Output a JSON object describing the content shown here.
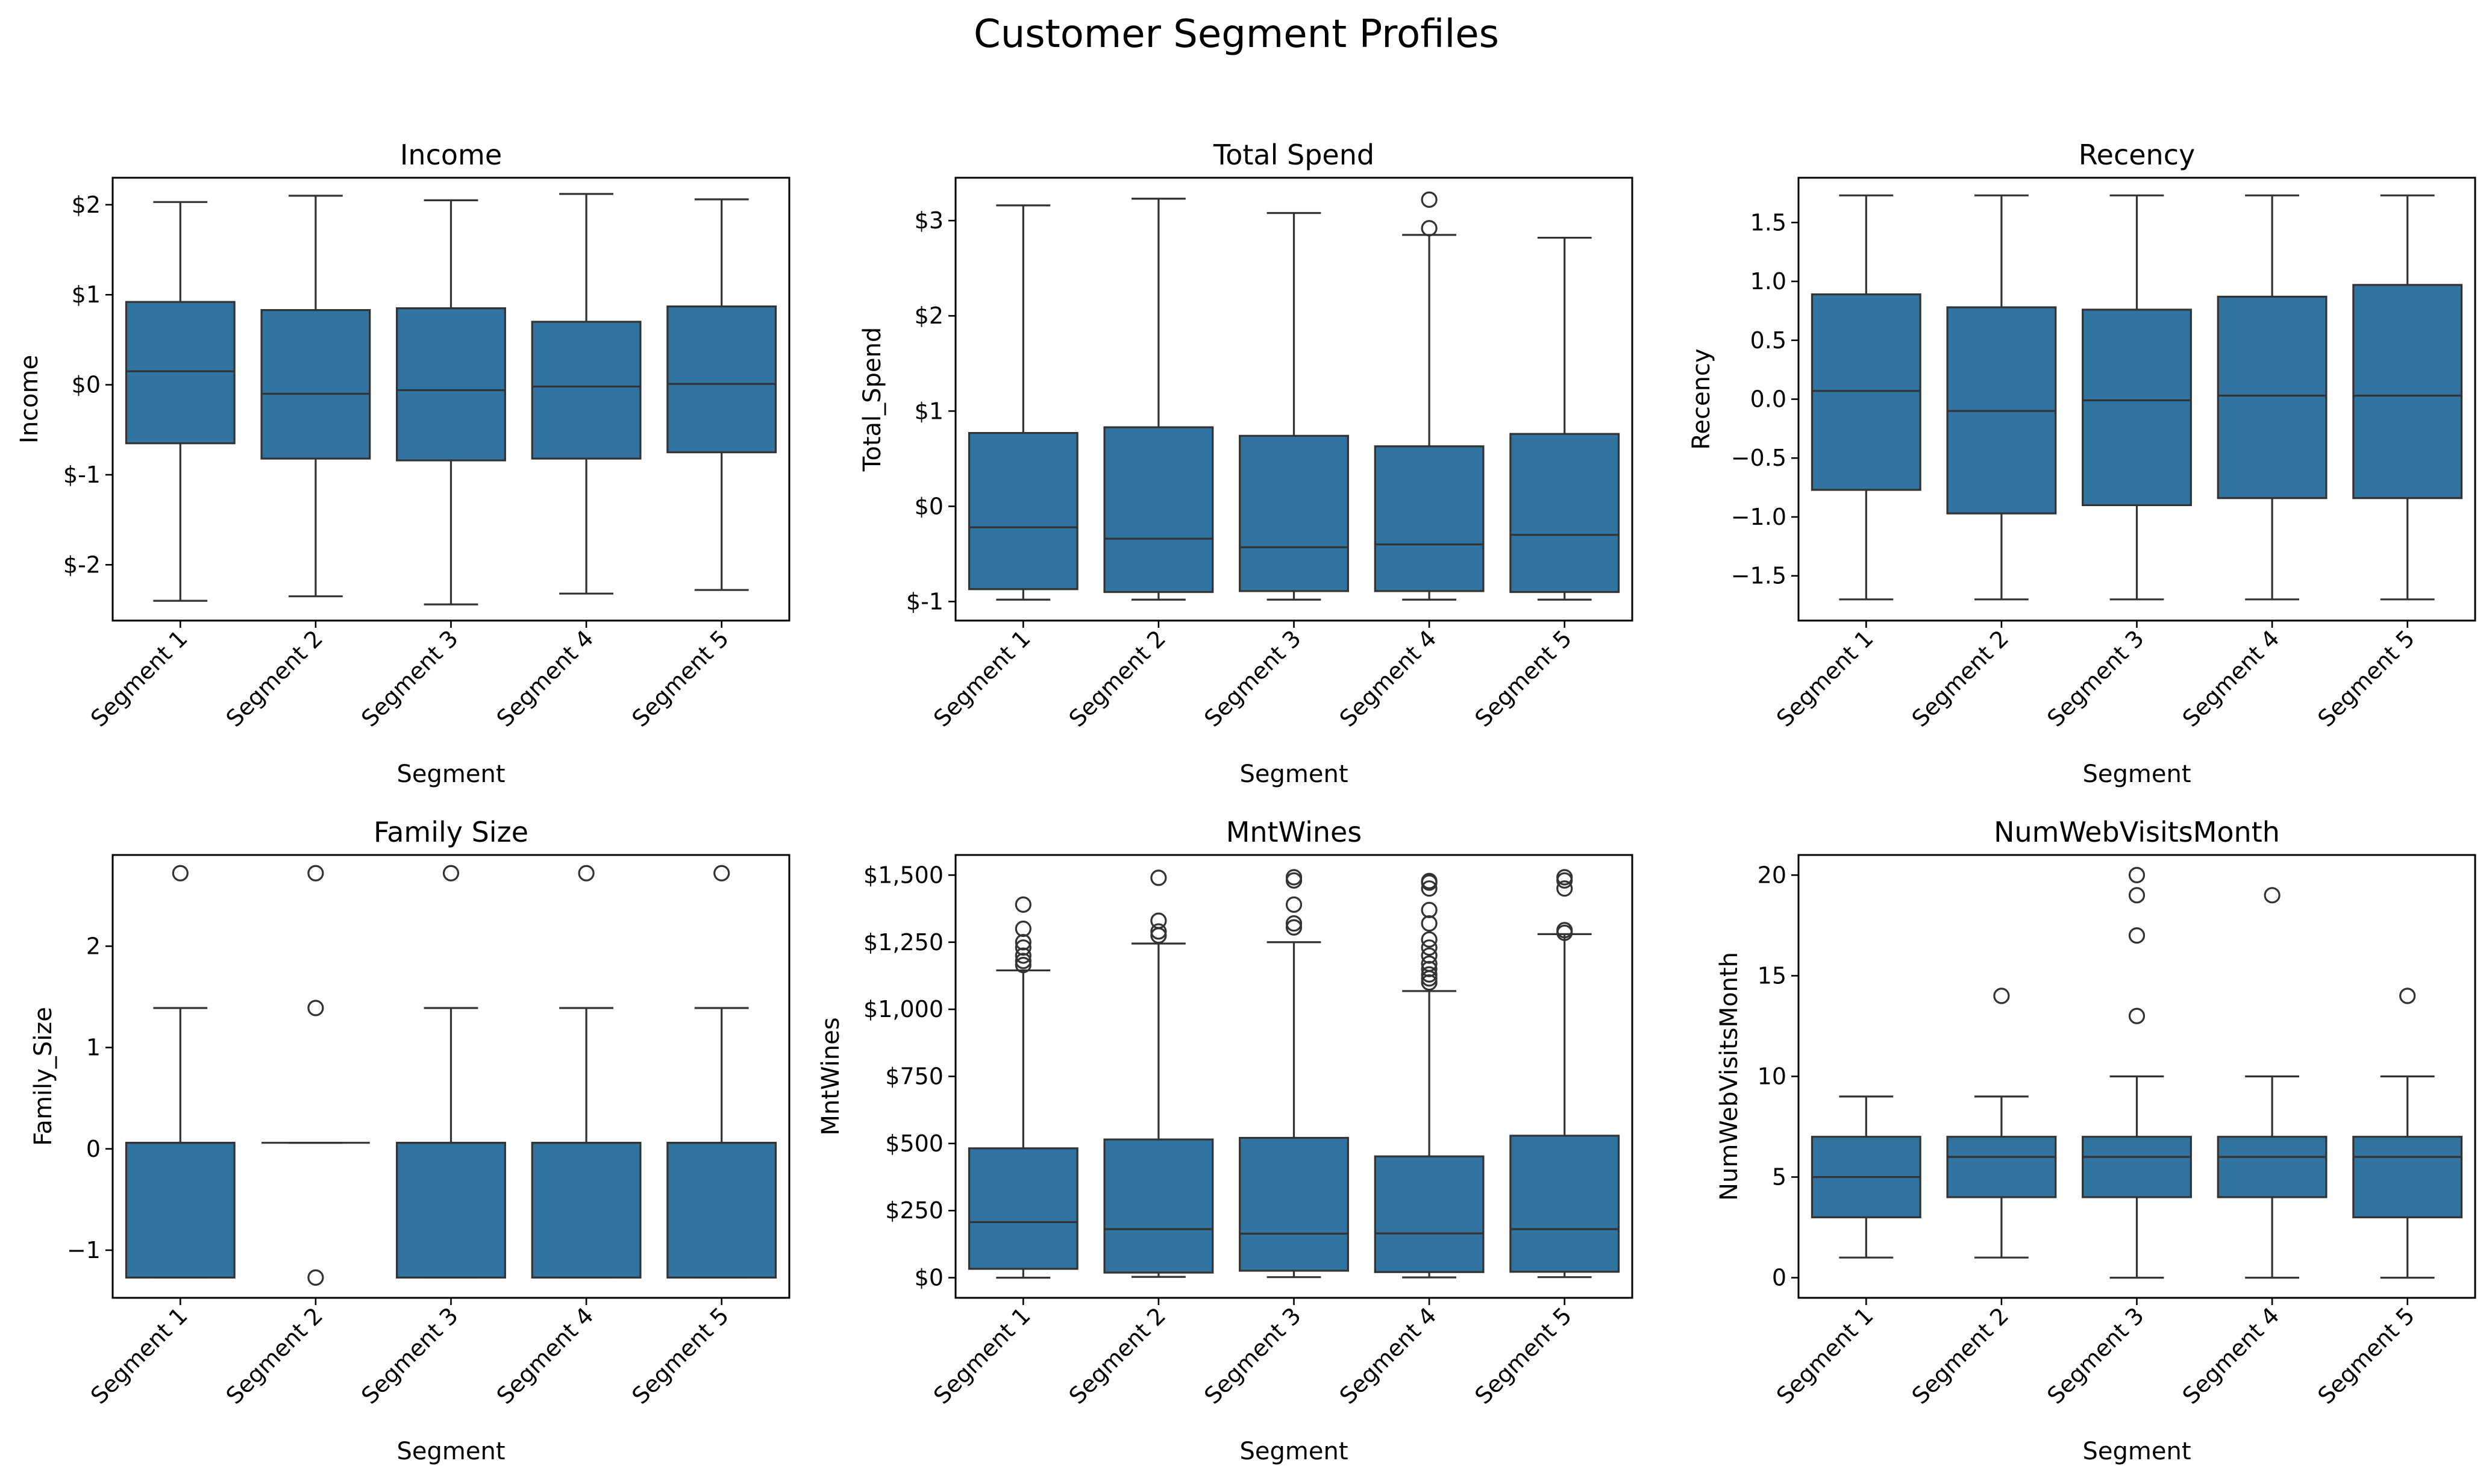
{
  "chart_data": {
    "title": "Customer Segment Profiles",
    "box_color": "#3274a1",
    "line_color": "#333333",
    "charts": [
      {
        "type": "box",
        "title": "Income",
        "xlabel": "Segment",
        "ylabel": "Income",
        "ylim": [
          -2.62,
          2.3
        ],
        "yticks": [
          -2,
          -1,
          0,
          1,
          2
        ],
        "ytick_labels": [
          "$-2",
          "$-1",
          "$0",
          "$1",
          "$2"
        ],
        "categories": [
          "Segment 1",
          "Segment 2",
          "Segment 3",
          "Segment 4",
          "Segment 5"
        ],
        "boxes": [
          {
            "whislo": -2.4,
            "q1": -0.65,
            "med": 0.15,
            "q3": 0.92,
            "whishi": 2.03,
            "fliers": []
          },
          {
            "whislo": -2.35,
            "q1": -0.82,
            "med": -0.1,
            "q3": 0.83,
            "whishi": 2.1,
            "fliers": []
          },
          {
            "whislo": -2.44,
            "q1": -0.84,
            "med": -0.06,
            "q3": 0.85,
            "whishi": 2.05,
            "fliers": []
          },
          {
            "whislo": -2.32,
            "q1": -0.82,
            "med": -0.02,
            "q3": 0.7,
            "whishi": 2.12,
            "fliers": []
          },
          {
            "whislo": -2.28,
            "q1": -0.75,
            "med": 0.01,
            "q3": 0.87,
            "whishi": 2.06,
            "fliers": []
          }
        ]
      },
      {
        "type": "box",
        "title": "Total Spend",
        "xlabel": "Segment",
        "ylabel": "Total_Spend",
        "ylim": [
          -1.2,
          3.45
        ],
        "yticks": [
          -1,
          0,
          1,
          2,
          3
        ],
        "ytick_labels": [
          "$-1",
          "$0",
          "$1",
          "$2",
          "$3"
        ],
        "categories": [
          "Segment 1",
          "Segment 2",
          "Segment 3",
          "Segment 4",
          "Segment 5"
        ],
        "boxes": [
          {
            "whislo": -0.98,
            "q1": -0.87,
            "med": -0.22,
            "q3": 0.77,
            "whishi": 3.16,
            "fliers": []
          },
          {
            "whislo": -0.98,
            "q1": -0.9,
            "med": -0.34,
            "q3": 0.83,
            "whishi": 3.23,
            "fliers": []
          },
          {
            "whislo": -0.98,
            "q1": -0.89,
            "med": -0.43,
            "q3": 0.74,
            "whishi": 3.08,
            "fliers": []
          },
          {
            "whislo": -0.98,
            "q1": -0.89,
            "med": -0.4,
            "q3": 0.63,
            "whishi": 2.85,
            "fliers": [
              2.92,
              3.22
            ]
          },
          {
            "whislo": -0.98,
            "q1": -0.9,
            "med": -0.3,
            "q3": 0.76,
            "whishi": 2.82,
            "fliers": []
          }
        ]
      },
      {
        "type": "box",
        "title": "Recency",
        "xlabel": "Segment",
        "ylabel": "Recency",
        "ylim": [
          -1.88,
          1.88
        ],
        "yticks": [
          -1.5,
          -1.0,
          -0.5,
          0.0,
          0.5,
          1.0,
          1.5
        ],
        "ytick_labels": [
          "−1.5",
          "−1.0",
          "−0.5",
          "0.0",
          "0.5",
          "1.0",
          "1.5"
        ],
        "categories": [
          "Segment 1",
          "Segment 2",
          "Segment 3",
          "Segment 4",
          "Segment 5"
        ],
        "boxes": [
          {
            "whislo": -1.7,
            "q1": -0.77,
            "med": 0.07,
            "q3": 0.89,
            "whishi": 1.73,
            "fliers": []
          },
          {
            "whislo": -1.7,
            "q1": -0.97,
            "med": -0.1,
            "q3": 0.78,
            "whishi": 1.73,
            "fliers": []
          },
          {
            "whislo": -1.7,
            "q1": -0.9,
            "med": -0.01,
            "q3": 0.76,
            "whishi": 1.73,
            "fliers": []
          },
          {
            "whislo": -1.7,
            "q1": -0.84,
            "med": 0.03,
            "q3": 0.87,
            "whishi": 1.73,
            "fliers": []
          },
          {
            "whislo": -1.7,
            "q1": -0.84,
            "med": 0.03,
            "q3": 0.97,
            "whishi": 1.73,
            "fliers": []
          }
        ]
      },
      {
        "type": "box",
        "title": "Family Size",
        "xlabel": "Segment",
        "ylabel": "Family_Size",
        "ylim": [
          -1.47,
          2.9
        ],
        "yticks": [
          -1,
          0,
          1,
          2
        ],
        "ytick_labels": [
          "−1",
          "0",
          "1",
          "2"
        ],
        "categories": [
          "Segment 1",
          "Segment 2",
          "Segment 3",
          "Segment 4",
          "Segment 5"
        ],
        "boxes": [
          {
            "whislo": -1.27,
            "q1": -1.27,
            "med": 0.06,
            "q3": 0.06,
            "whishi": 1.39,
            "fliers": [
              2.72
            ]
          },
          {
            "whislo": 0.06,
            "q1": 0.06,
            "med": 0.06,
            "q3": 0.06,
            "whishi": 0.06,
            "fliers": [
              -1.27,
              1.39,
              2.72
            ]
          },
          {
            "whislo": -1.27,
            "q1": -1.27,
            "med": 0.06,
            "q3": 0.06,
            "whishi": 1.39,
            "fliers": [
              2.72
            ]
          },
          {
            "whislo": -1.27,
            "q1": -1.27,
            "med": 0.06,
            "q3": 0.06,
            "whishi": 1.39,
            "fliers": [
              2.72
            ]
          },
          {
            "whislo": -1.27,
            "q1": -1.27,
            "med": 0.06,
            "q3": 0.06,
            "whishi": 1.39,
            "fliers": [
              2.72
            ]
          }
        ]
      },
      {
        "type": "box",
        "title": "MntWines",
        "xlabel": "Segment",
        "ylabel": "MntWines",
        "ylim": [
          -75,
          1575
        ],
        "yticks": [
          0,
          250,
          500,
          750,
          1000,
          1250,
          1500
        ],
        "ytick_labels": [
          "$0",
          "$250",
          "$500",
          "$750",
          "$1,000",
          "$1,250",
          "$1,500"
        ],
        "categories": [
          "Segment 1",
          "Segment 2",
          "Segment 3",
          "Segment 4",
          "Segment 5"
        ],
        "boxes": [
          {
            "whislo": 0,
            "q1": 33,
            "med": 207,
            "q3": 482,
            "whishi": 1145,
            "fliers": [
              1165,
              1180,
              1200,
              1230,
              1250,
              1300,
              1390
            ]
          },
          {
            "whislo": 3,
            "q1": 19,
            "med": 181,
            "q3": 515,
            "whishi": 1245,
            "fliers": [
              1275,
              1290,
              1330,
              1490
            ]
          },
          {
            "whislo": 2,
            "q1": 26,
            "med": 164,
            "q3": 521,
            "whishi": 1250,
            "fliers": [
              1305,
              1320,
              1390,
              1480,
              1492
            ]
          },
          {
            "whislo": 1,
            "q1": 21,
            "med": 165,
            "q3": 452,
            "whishi": 1068,
            "fliers": [
              1100,
              1115,
              1130,
              1150,
              1170,
              1200,
              1230,
              1260,
              1320,
              1370,
              1450,
              1472,
              1478
            ]
          },
          {
            "whislo": 2,
            "q1": 22,
            "med": 181,
            "q3": 529,
            "whishi": 1280,
            "fliers": [
              1285,
              1295,
              1450,
              1480,
              1492
            ]
          }
        ]
      },
      {
        "type": "box",
        "title": "NumWebVisitsMonth",
        "xlabel": "Segment",
        "ylabel": "NumWebVisitsMonth",
        "ylim": [
          -1,
          21
        ],
        "yticks": [
          0,
          5,
          10,
          15,
          20
        ],
        "ytick_labels": [
          "0",
          "5",
          "10",
          "15",
          "20"
        ],
        "categories": [
          "Segment 1",
          "Segment 2",
          "Segment 3",
          "Segment 4",
          "Segment 5"
        ],
        "boxes": [
          {
            "whislo": 1,
            "q1": 3,
            "med": 5,
            "q3": 7,
            "whishi": 9,
            "fliers": []
          },
          {
            "whislo": 1,
            "q1": 4,
            "med": 6,
            "q3": 7,
            "whishi": 9,
            "fliers": [
              14
            ]
          },
          {
            "whislo": 0,
            "q1": 4,
            "med": 6,
            "q3": 7,
            "whishi": 10,
            "fliers": [
              13,
              17,
              19,
              20
            ]
          },
          {
            "whislo": 0,
            "q1": 4,
            "med": 6,
            "q3": 7,
            "whishi": 10,
            "fliers": [
              19
            ]
          },
          {
            "whislo": 0,
            "q1": 3,
            "med": 6,
            "q3": 7,
            "whishi": 10,
            "fliers": [
              14
            ]
          }
        ]
      }
    ]
  }
}
